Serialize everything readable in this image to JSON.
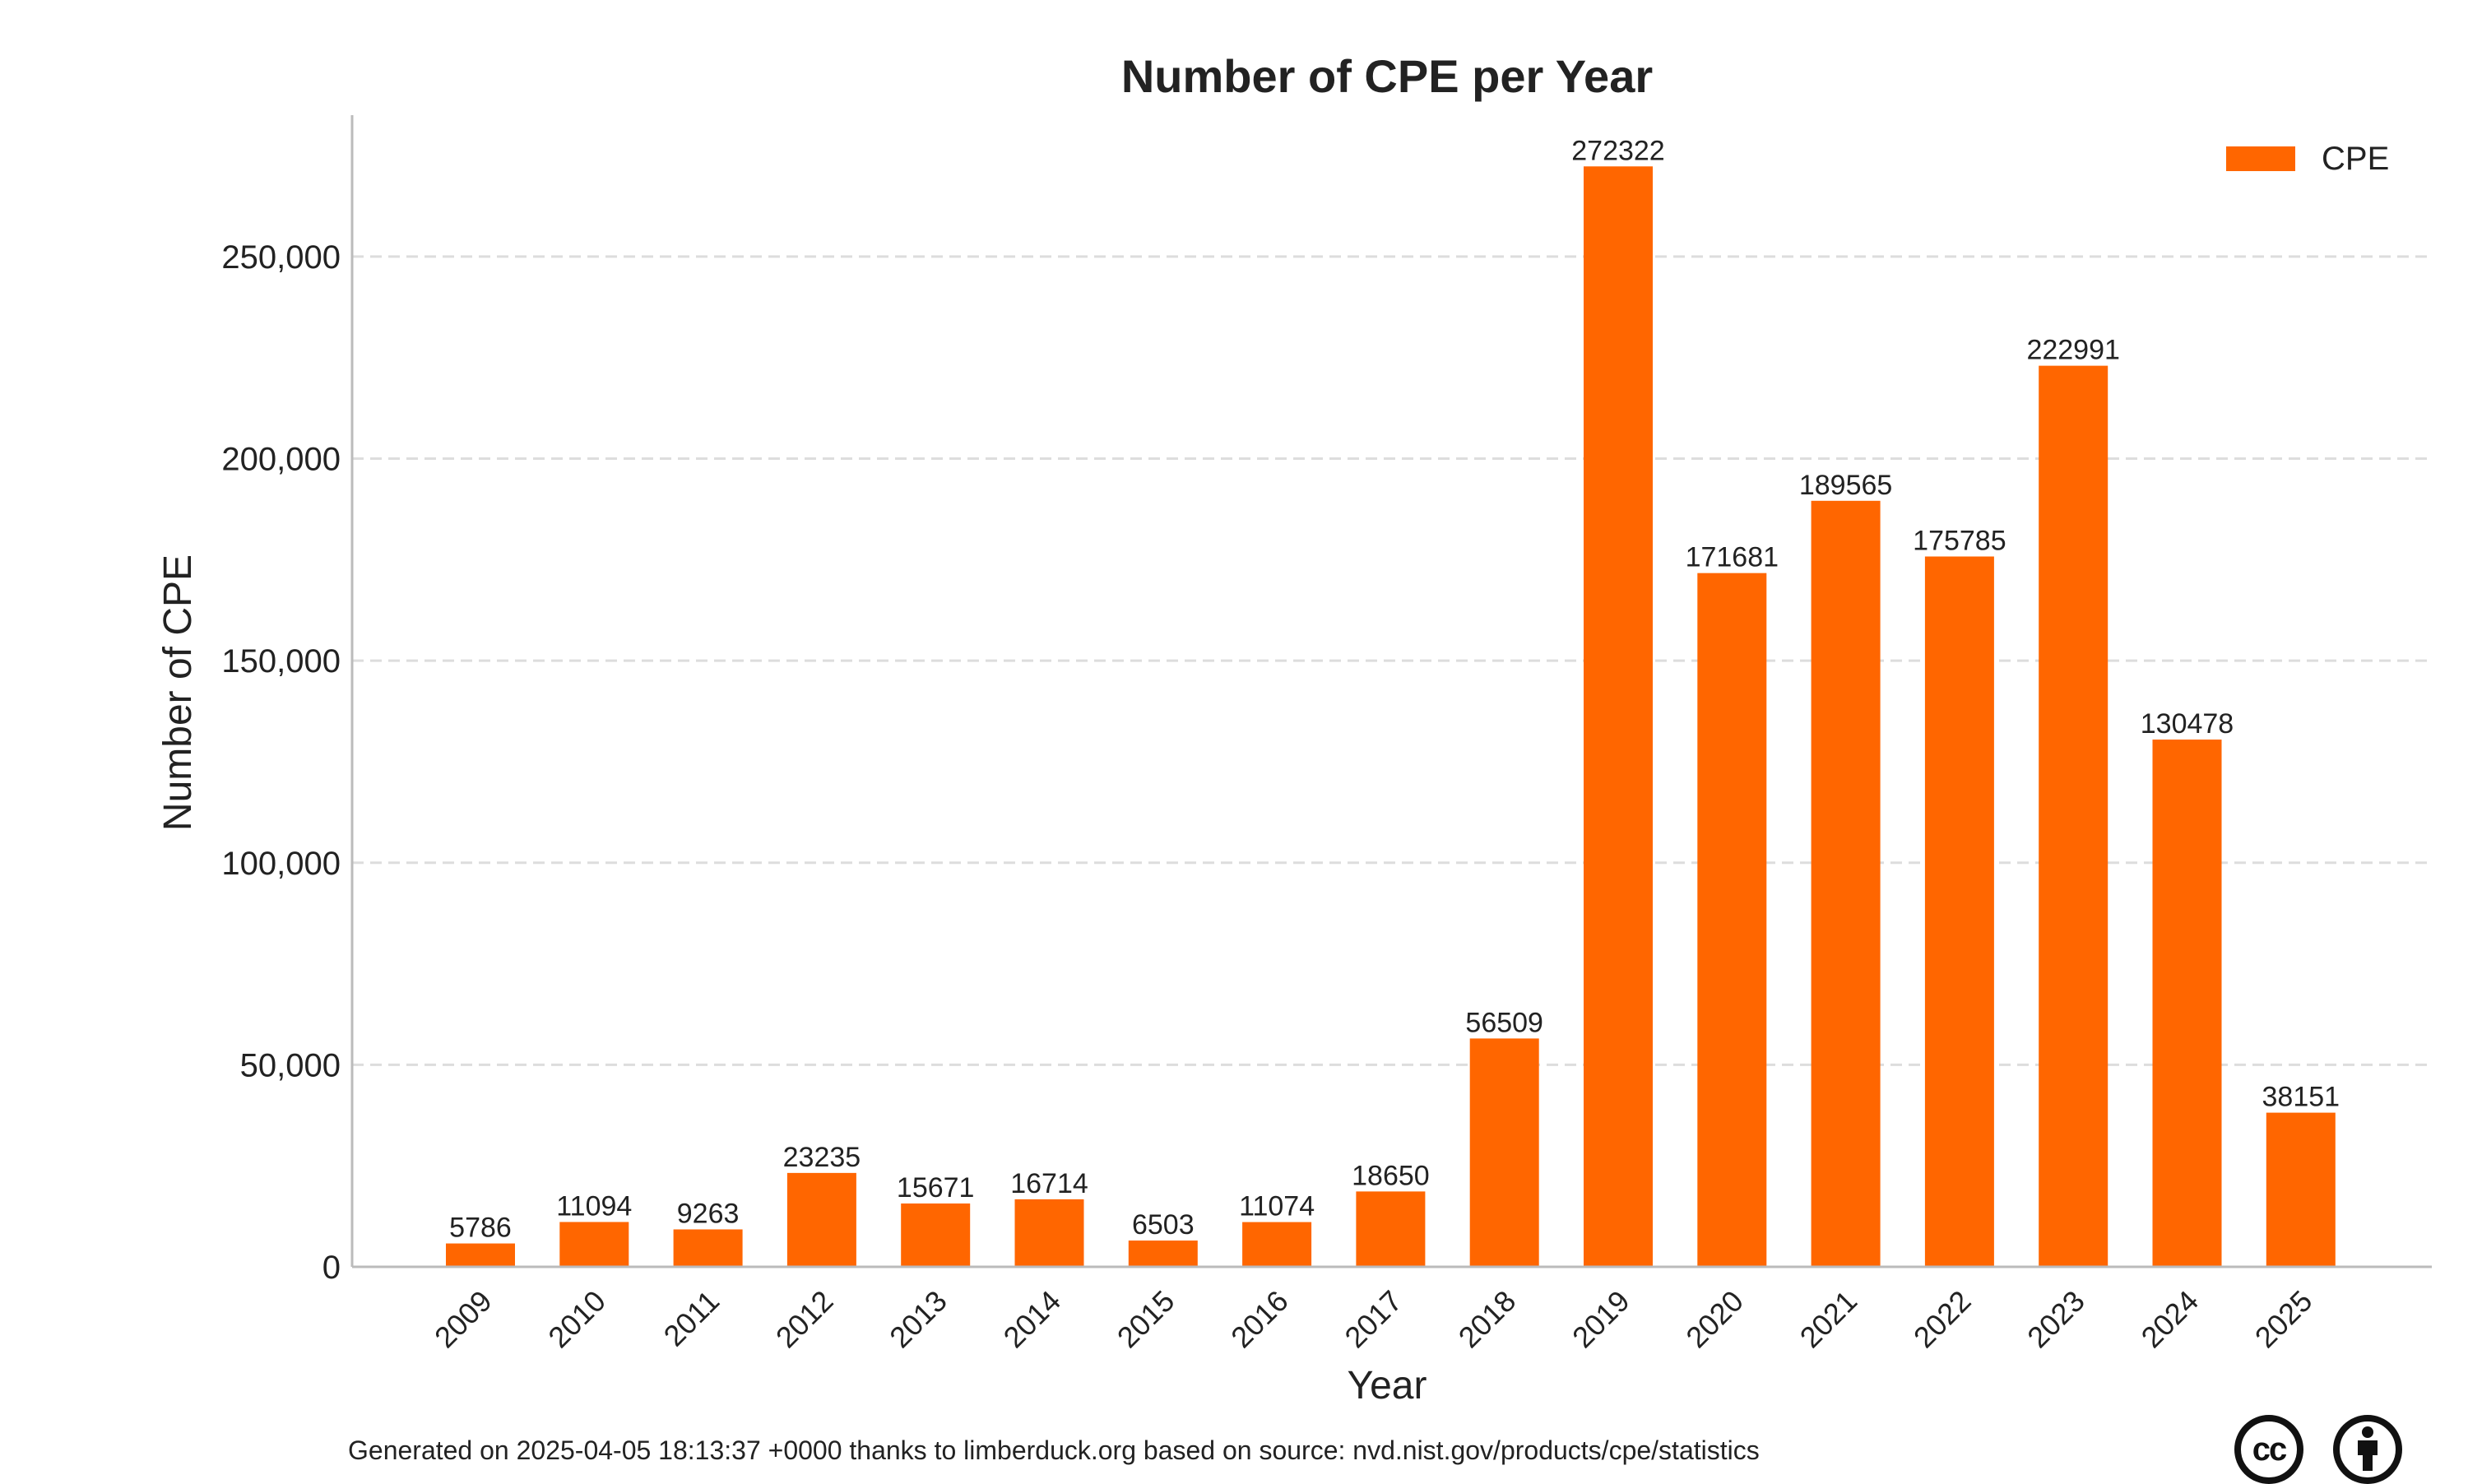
{
  "chart_data": {
    "type": "bar",
    "title": "Number of CPE per Year",
    "xlabel": "Year",
    "ylabel": "Number of CPE",
    "categories": [
      "2009",
      "2010",
      "2011",
      "2012",
      "2013",
      "2014",
      "2015",
      "2016",
      "2017",
      "2018",
      "2019",
      "2020",
      "2021",
      "2022",
      "2023",
      "2024",
      "2025"
    ],
    "series": [
      {
        "name": "CPE",
        "color": "#ff6600",
        "values": [
          5786,
          11094,
          9263,
          23235,
          15671,
          16714,
          6503,
          11074,
          18650,
          56509,
          272322,
          171681,
          189565,
          175785,
          222991,
          130478,
          38151
        ]
      }
    ],
    "ylim": [
      0,
      285000
    ],
    "yticks": [
      0,
      50000,
      100000,
      150000,
      200000,
      250000
    ],
    "ytick_labels": [
      "0",
      "50,000",
      "100,000",
      "150,000",
      "200,000",
      "250,000"
    ],
    "grid": "horizontal dashed",
    "legend_position": "top-right"
  },
  "footer": {
    "text": "Generated on 2025-04-05 18:13:37 +0000 thanks to limberduck.org based on source: nvd.nist.gov/products/cpe/statistics"
  },
  "license_icons": [
    "cc-icon",
    "by-attribution-icon"
  ],
  "license_badge_text": "cc"
}
